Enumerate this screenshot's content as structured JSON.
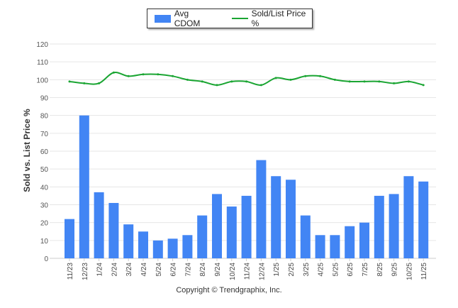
{
  "chart_data": {
    "type": "bar",
    "title": "",
    "ylabel": "Sold vs. List Price %",
    "xlabel": "",
    "ylim": [
      0,
      120
    ],
    "yticks": [
      0,
      10,
      20,
      30,
      40,
      50,
      60,
      70,
      80,
      90,
      100,
      110,
      120
    ],
    "grid": true,
    "legend_position": "top-center",
    "categories": [
      "11/23",
      "12/23",
      "1/24",
      "2/24",
      "3/24",
      "4/24",
      "5/24",
      "6/24",
      "7/24",
      "8/24",
      "9/24",
      "10/24",
      "11/24",
      "12/24",
      "1/25",
      "2/25",
      "3/25",
      "4/25",
      "5/25",
      "6/25",
      "7/25",
      "8/25",
      "9/25",
      "10/25",
      "11/25"
    ],
    "series": [
      {
        "name": "Avg CDOM",
        "type": "bar",
        "color": "#4285f4",
        "values": [
          22,
          80,
          37,
          31,
          19,
          15,
          10,
          11,
          13,
          24,
          36,
          29,
          35,
          55,
          46,
          44,
          24,
          13,
          13,
          18,
          20,
          35,
          36,
          46,
          43
        ]
      },
      {
        "name": "Sold/List Price %",
        "type": "line",
        "color": "#1aa532",
        "values": [
          99,
          98,
          98,
          104,
          102,
          103,
          103,
          102,
          100,
          99,
          97,
          99,
          99,
          97,
          101,
          100,
          102,
          102,
          100,
          99,
          99,
          99,
          98,
          99,
          97
        ]
      }
    ]
  },
  "footer": {
    "copyright": "Copyright © Trendgraphix, Inc."
  }
}
